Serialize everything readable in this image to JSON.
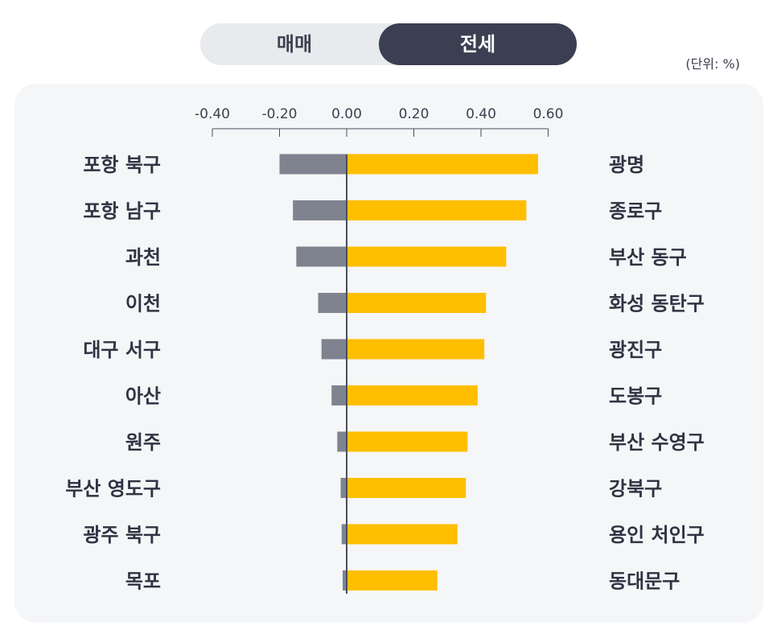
{
  "toggle": {
    "options": [
      "매매",
      "전세"
    ],
    "selected": "전세"
  },
  "unit_label": "(단위: %)",
  "colors": {
    "negative": "#7f838f",
    "positive": "#ffbf00",
    "axis": "#4b4f5c"
  },
  "chart_data": {
    "type": "bar",
    "orientation": "horizontal-diverging",
    "xlim": [
      -0.4,
      0.6
    ],
    "ticks": [
      -0.4,
      -0.2,
      0.0,
      0.2,
      0.4,
      0.6
    ],
    "tick_labels": [
      "-0.40",
      "-0.20",
      "0.00",
      "0.20",
      "0.40",
      "0.60"
    ],
    "rows": [
      {
        "left_label": "포항 북구",
        "left_value": -0.2,
        "right_label": "광명",
        "right_value": 0.57
      },
      {
        "left_label": "포항 남구",
        "left_value": -0.16,
        "right_label": "종로구",
        "right_value": 0.535
      },
      {
        "left_label": "과천",
        "left_value": -0.15,
        "right_label": "부산 동구",
        "right_value": 0.475
      },
      {
        "left_label": "이천",
        "left_value": -0.085,
        "right_label": "화성 동탄구",
        "right_value": 0.415
      },
      {
        "left_label": "대구 서구",
        "left_value": -0.075,
        "right_label": "광진구",
        "right_value": 0.41
      },
      {
        "left_label": "아산",
        "left_value": -0.045,
        "right_label": "도봉구",
        "right_value": 0.39
      },
      {
        "left_label": "원주",
        "left_value": -0.028,
        "right_label": "부산 수영구",
        "right_value": 0.36
      },
      {
        "left_label": "부산 영도구",
        "left_value": -0.018,
        "right_label": "강북구",
        "right_value": 0.355
      },
      {
        "left_label": "광주 북구",
        "left_value": -0.015,
        "right_label": "용인 처인구",
        "right_value": 0.33
      },
      {
        "left_label": "목포",
        "left_value": -0.012,
        "right_label": "동대문구",
        "right_value": 0.27
      }
    ]
  }
}
